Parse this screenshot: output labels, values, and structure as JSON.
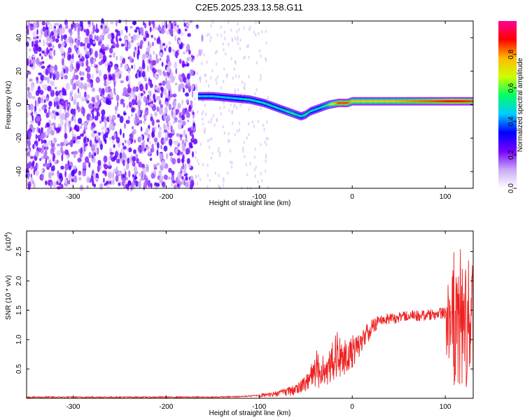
{
  "title": "C2E5.2025.233.13.58.G11",
  "chart_data": [
    {
      "type": "heatmap",
      "xlabel": "Height of straight line (km)",
      "ylabel": "Frequency (Hz)",
      "xlim": [
        -350,
        130
      ],
      "ylim": [
        -50,
        50
      ],
      "x_ticks": [
        -300,
        -200,
        -100,
        0,
        100
      ],
      "y_ticks": [
        -40,
        -20,
        0,
        20,
        40
      ],
      "colorbar": {
        "label": "Normalized spectral amplitude",
        "range": [
          0.0,
          1.0
        ],
        "ticks": [
          "0.0",
          "0.2",
          "0.4",
          "0.6",
          "0.8"
        ],
        "tick_values": [
          0.0,
          0.2,
          0.4,
          0.6,
          0.8
        ],
        "colors": [
          "#ffffff",
          "#c9a9f5",
          "#7700ff",
          "#0000ff",
          "#00ccff",
          "#00ff66",
          "#ccff00",
          "#ffbb00",
          "#ff0000",
          "#ff0099"
        ]
      },
      "signal_ridge": {
        "x": [
          -165,
          -150,
          -130,
          -110,
          -95,
          -85,
          -75,
          -65,
          -55,
          -50,
          -45,
          -40,
          -35,
          -25,
          -15,
          -5,
          0,
          10,
          30,
          60,
          90,
          110,
          130
        ],
        "frequency": [
          5,
          5,
          4,
          3,
          1,
          -1,
          -3,
          -5,
          -7,
          -6,
          -4,
          -3,
          -2,
          0,
          1,
          1,
          2,
          2,
          2,
          2,
          2,
          2,
          2
        ],
        "amplitude": [
          0.45,
          0.45,
          0.45,
          0.5,
          0.5,
          0.5,
          0.5,
          0.55,
          0.5,
          0.55,
          0.5,
          0.5,
          0.5,
          0.6,
          0.85,
          0.85,
          0.75,
          0.75,
          0.75,
          0.8,
          0.85,
          0.9,
          0.85
        ]
      },
      "grid": false
    },
    {
      "type": "line",
      "xlabel": "Height of straight line (km)",
      "ylabel": "SNR (10 * v/v)",
      "scale_label": "(x10",
      "scale_exponent": "4",
      "scale_suffix": ")",
      "xlim": [
        -350,
        130
      ],
      "ylim": [
        0,
        2.85
      ],
      "x_ticks": [
        -300,
        -200,
        -100,
        0,
        100
      ],
      "y_ticks": [
        0.5,
        1.0,
        1.5,
        2.0,
        2.5
      ],
      "y_tick_labels": [
        "0.5",
        "1.0",
        "1.5",
        "2.0",
        "2.5"
      ],
      "series": [
        {
          "color": "#ee2222",
          "x": [
            -350,
            -300,
            -250,
            -200,
            -150,
            -120,
            -100,
            -80,
            -60,
            -50,
            -45,
            -40,
            -35,
            -30,
            -25,
            -20,
            -15,
            -10,
            -5,
            0,
            5,
            10,
            15,
            20,
            25,
            30,
            40,
            50,
            60,
            70,
            80,
            90,
            100,
            105,
            110,
            115,
            120,
            130
          ],
          "values": [
            0.02,
            0.02,
            0.02,
            0.02,
            0.02,
            0.03,
            0.05,
            0.1,
            0.2,
            0.3,
            0.35,
            0.55,
            0.45,
            0.5,
            0.6,
            0.55,
            0.65,
            0.7,
            0.75,
            0.9,
            0.95,
            1.0,
            1.1,
            1.2,
            1.3,
            1.35,
            1.38,
            1.4,
            1.4,
            1.42,
            1.43,
            1.45,
            1.45,
            1.5,
            1.45,
            1.45,
            1.4,
            1.42
          ],
          "envelope": {
            "x": [
              -100,
              -80,
              -60,
              -50,
              -45,
              -40,
              -35,
              -30,
              -25,
              -20,
              -15,
              -10,
              -5,
              0,
              5,
              10,
              15,
              20,
              30,
              100,
              103,
              106,
              110,
              112,
              115
            ],
            "low": [
              0.02,
              0.03,
              0.05,
              0.1,
              0.15,
              0.2,
              0.15,
              0.2,
              0.25,
              0.15,
              0.3,
              0.35,
              0.4,
              0.5,
              0.65,
              0.75,
              0.9,
              1.0,
              1.25,
              1.35,
              0.05,
              1.0,
              0.1,
              0.08,
              0.12
            ],
            "high": [
              0.08,
              0.12,
              0.25,
              0.4,
              0.55,
              0.9,
              0.7,
              0.8,
              0.8,
              1.25,
              1.1,
              1.0,
              1.0,
              1.1,
              1.1,
              1.15,
              1.25,
              1.35,
              1.45,
              1.55,
              1.95,
              1.7,
              2.85,
              2.0,
              2.6
            ]
          }
        }
      ],
      "grid": false
    }
  ]
}
